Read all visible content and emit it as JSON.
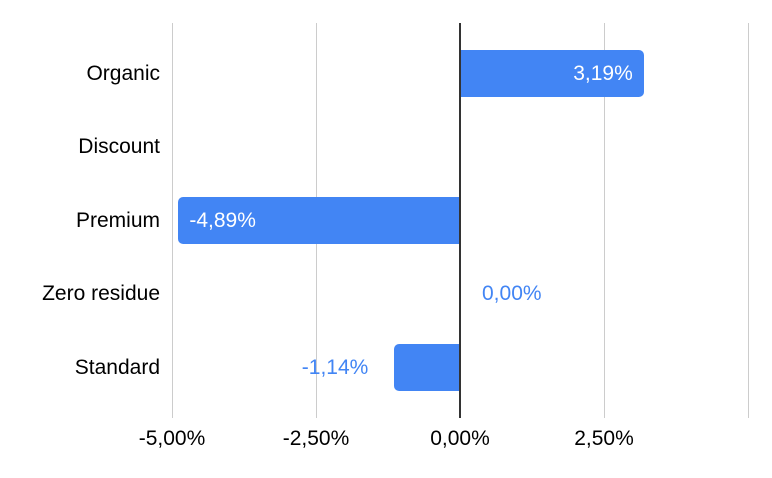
{
  "chart_data": {
    "type": "bar",
    "orientation": "horizontal",
    "title": "",
    "categories": [
      "Organic",
      "Discount",
      "Premium",
      "Zero residue",
      "Standard"
    ],
    "values": [
      3.19,
      null,
      -4.89,
      0.0,
      -1.14
    ],
    "value_labels": [
      "3,19%",
      null,
      "-4,89%",
      "0,00%",
      "-1,14%"
    ],
    "label_placement": [
      "inside-end",
      "none",
      "inside-end",
      "outside",
      "outside"
    ],
    "x_ticks": [
      -5,
      -2.5,
      0,
      2.5
    ],
    "x_tick_labels": [
      "-5,00%",
      "-2,50%",
      "0,00%",
      "2,50%"
    ],
    "gridline_values": [
      -5,
      -2.5,
      0,
      2.5,
      5
    ],
    "xlim": [
      -5,
      5
    ],
    "grid": true,
    "legend_position": "none",
    "colors": {
      "bar": "#4285f4",
      "label_inside": "#ffffff",
      "label_outside": "#4285f4",
      "axis_line": "#333333",
      "gridline": "#cccccc",
      "text": "#000000",
      "background": "#ffffff"
    }
  }
}
